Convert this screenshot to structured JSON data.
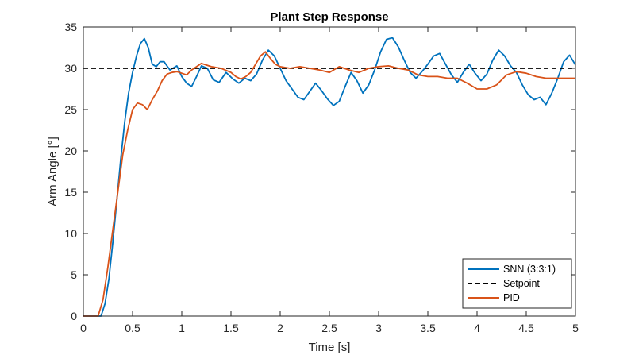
{
  "chart_data": {
    "type": "line",
    "title": "Plant Step Response",
    "xlabel": "Time [s]",
    "ylabel": "Arm Angle [°]",
    "xlim": [
      0,
      5
    ],
    "ylim": [
      0,
      35
    ],
    "xticks": [
      0,
      0.5,
      1,
      1.5,
      2,
      2.5,
      3,
      3.5,
      4,
      4.5,
      5
    ],
    "xtick_labels": [
      "0",
      "0.5",
      "1",
      "1.5",
      "2",
      "2.5",
      "3",
      "3.5",
      "4",
      "4.5",
      "5"
    ],
    "yticks": [
      0,
      5,
      10,
      15,
      20,
      25,
      30,
      35
    ],
    "ytick_labels": [
      "0",
      "5",
      "10",
      "15",
      "20",
      "25",
      "30",
      "35"
    ],
    "grid": false,
    "legend_position": "bottom-right",
    "series": [
      {
        "name": "SNN (3:3:1)",
        "color": "#0072BD",
        "style": "solid",
        "x": [
          0,
          0.18,
          0.22,
          0.26,
          0.3,
          0.34,
          0.38,
          0.42,
          0.46,
          0.5,
          0.54,
          0.58,
          0.62,
          0.66,
          0.7,
          0.74,
          0.78,
          0.82,
          0.88,
          0.95,
          1.0,
          1.05,
          1.1,
          1.15,
          1.2,
          1.26,
          1.32,
          1.38,
          1.45,
          1.52,
          1.58,
          1.64,
          1.7,
          1.76,
          1.82,
          1.88,
          1.94,
          2.0,
          2.06,
          2.12,
          2.18,
          2.24,
          2.3,
          2.36,
          2.42,
          2.48,
          2.54,
          2.6,
          2.66,
          2.72,
          2.78,
          2.84,
          2.9,
          2.96,
          3.02,
          3.08,
          3.14,
          3.2,
          3.26,
          3.32,
          3.38,
          3.44,
          3.5,
          3.56,
          3.62,
          3.68,
          3.74,
          3.8,
          3.86,
          3.92,
          3.98,
          4.04,
          4.1,
          4.16,
          4.22,
          4.28,
          4.34,
          4.4,
          4.46,
          4.52,
          4.58,
          4.64,
          4.7,
          4.76,
          4.82,
          4.88,
          4.94,
          5.0
        ],
        "y": [
          0,
          0,
          1.5,
          4.5,
          9,
          14,
          19,
          23.5,
          27,
          29.5,
          31.5,
          33,
          33.6,
          32.5,
          30.5,
          30.2,
          30.8,
          30.8,
          29.8,
          30.3,
          29,
          28.2,
          27.8,
          29,
          30.3,
          30,
          28.6,
          28.3,
          29.5,
          28.7,
          28.2,
          28.8,
          28.5,
          29.3,
          31,
          32.2,
          31.5,
          30,
          28.5,
          27.5,
          26.5,
          26.2,
          27.2,
          28.2,
          27.3,
          26.3,
          25.5,
          26,
          27.8,
          29.5,
          28.5,
          27,
          28,
          29.8,
          32,
          33.5,
          33.7,
          32.6,
          31,
          29.5,
          28.8,
          29.6,
          30.5,
          31.5,
          31.8,
          30.5,
          29.2,
          28.3,
          29.5,
          30.5,
          29.4,
          28.5,
          29.3,
          31,
          32.2,
          31.5,
          30.3,
          29.5,
          28,
          26.8,
          26.2,
          26.5,
          25.6,
          27,
          28.8,
          30.8,
          31.6,
          30.4
        ]
      },
      {
        "name": "Setpoint",
        "color": "#000000",
        "style": "dashed",
        "x": [
          0,
          5
        ],
        "y": [
          30,
          30
        ]
      },
      {
        "name": "PID",
        "color": "#D95319",
        "style": "solid",
        "x": [
          0,
          0.15,
          0.2,
          0.25,
          0.3,
          0.35,
          0.4,
          0.45,
          0.5,
          0.55,
          0.6,
          0.65,
          0.7,
          0.75,
          0.8,
          0.85,
          0.9,
          0.95,
          1.0,
          1.05,
          1.1,
          1.2,
          1.3,
          1.4,
          1.5,
          1.55,
          1.6,
          1.65,
          1.7,
          1.75,
          1.8,
          1.85,
          1.9,
          1.95,
          2.0,
          2.1,
          2.2,
          2.3,
          2.4,
          2.5,
          2.6,
          2.7,
          2.8,
          2.9,
          3.0,
          3.1,
          3.2,
          3.3,
          3.4,
          3.5,
          3.6,
          3.7,
          3.8,
          3.9,
          4.0,
          4.1,
          4.2,
          4.3,
          4.4,
          4.5,
          4.6,
          4.7,
          4.8,
          4.9,
          5.0
        ],
        "y": [
          0,
          0,
          2,
          6,
          10.5,
          15,
          19.5,
          22.5,
          25,
          25.8,
          25.6,
          25,
          26.2,
          27.2,
          28.5,
          29.3,
          29.5,
          29.6,
          29.4,
          29.2,
          29.8,
          30.6,
          30.2,
          30.0,
          29.5,
          29.0,
          28.7,
          29.0,
          29.5,
          30.5,
          31.5,
          32.0,
          31.2,
          30.5,
          30.2,
          30.0,
          30.2,
          30.0,
          29.8,
          29.5,
          30.2,
          29.8,
          29.5,
          30.0,
          30.2,
          30.3,
          30.0,
          29.8,
          29.2,
          29.0,
          29.0,
          28.8,
          28.8,
          28.2,
          27.5,
          27.5,
          28.0,
          29.2,
          29.6,
          29.4,
          29.0,
          28.8,
          28.8,
          28.8,
          28.8
        ]
      }
    ]
  }
}
